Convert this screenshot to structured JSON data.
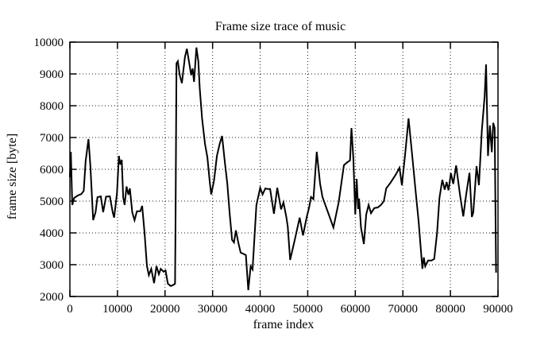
{
  "chart_data": {
    "type": "line",
    "title": "Frame size trace of music",
    "xlabel": "frame index",
    "ylabel": "frame size [byte]",
    "xlim": [
      0,
      90000
    ],
    "ylim": [
      2000,
      10000
    ],
    "x_ticks": [
      0,
      10000,
      20000,
      30000,
      40000,
      50000,
      60000,
      70000,
      80000,
      90000
    ],
    "y_ticks": [
      2000,
      3000,
      4000,
      5000,
      6000,
      7000,
      8000,
      9000,
      10000
    ],
    "grid": "dotted",
    "legend": "none",
    "line_color": "#000000",
    "background": "#ffffff",
    "series": [
      {
        "name": "frame size trace",
        "points": [
          [
            0,
            5750
          ],
          [
            200,
            6550
          ],
          [
            500,
            4880
          ],
          [
            900,
            5100
          ],
          [
            1700,
            5180
          ],
          [
            2400,
            5220
          ],
          [
            2900,
            5320
          ],
          [
            3300,
            6250
          ],
          [
            3900,
            6950
          ],
          [
            4300,
            6100
          ],
          [
            4900,
            4400
          ],
          [
            5400,
            4650
          ],
          [
            5800,
            5120
          ],
          [
            6500,
            5150
          ],
          [
            7000,
            4650
          ],
          [
            7600,
            5140
          ],
          [
            8400,
            5150
          ],
          [
            9000,
            4650
          ],
          [
            9300,
            4480
          ],
          [
            9900,
            5250
          ],
          [
            10300,
            6420
          ],
          [
            10600,
            6150
          ],
          [
            10900,
            6300
          ],
          [
            11200,
            5120
          ],
          [
            11500,
            4880
          ],
          [
            11900,
            5460
          ],
          [
            12300,
            5200
          ],
          [
            12600,
            5400
          ],
          [
            13100,
            4650
          ],
          [
            13600,
            4400
          ],
          [
            14100,
            4680
          ],
          [
            14800,
            4680
          ],
          [
            15200,
            4850
          ],
          [
            15700,
            4000
          ],
          [
            16200,
            2960
          ],
          [
            16600,
            2670
          ],
          [
            17100,
            2870
          ],
          [
            17700,
            2420
          ],
          [
            18200,
            2960
          ],
          [
            18700,
            2700
          ],
          [
            19100,
            2870
          ],
          [
            19700,
            2780
          ],
          [
            20100,
            2820
          ],
          [
            20600,
            2400
          ],
          [
            21200,
            2330
          ],
          [
            21700,
            2360
          ],
          [
            22100,
            2400
          ],
          [
            22200,
            4300
          ],
          [
            22400,
            9330
          ],
          [
            22700,
            9400
          ],
          [
            23100,
            8960
          ],
          [
            23550,
            8710
          ],
          [
            24200,
            9540
          ],
          [
            24600,
            9790
          ],
          [
            25050,
            9380
          ],
          [
            25500,
            8960
          ],
          [
            25800,
            9170
          ],
          [
            26100,
            8750
          ],
          [
            26600,
            9830
          ],
          [
            27000,
            9400
          ],
          [
            27300,
            8540
          ],
          [
            27800,
            7580
          ],
          [
            28400,
            6800
          ],
          [
            28900,
            6380
          ],
          [
            29400,
            5600
          ],
          [
            29700,
            5210
          ],
          [
            30300,
            5650
          ],
          [
            30900,
            6420
          ],
          [
            31500,
            6800
          ],
          [
            32000,
            7050
          ],
          [
            32600,
            6200
          ],
          [
            33100,
            5550
          ],
          [
            33600,
            4600
          ],
          [
            34100,
            3780
          ],
          [
            34500,
            3700
          ],
          [
            34900,
            4080
          ],
          [
            35400,
            3700
          ],
          [
            35900,
            3380
          ],
          [
            36500,
            3340
          ],
          [
            37000,
            3300
          ],
          [
            37500,
            2200
          ],
          [
            38000,
            2950
          ],
          [
            38400,
            2850
          ],
          [
            39200,
            4870
          ],
          [
            40000,
            5420
          ],
          [
            40500,
            5210
          ],
          [
            41100,
            5400
          ],
          [
            41600,
            5380
          ],
          [
            42100,
            5380
          ],
          [
            42900,
            4600
          ],
          [
            43600,
            5420
          ],
          [
            44400,
            4740
          ],
          [
            44900,
            4960
          ],
          [
            45500,
            4500
          ],
          [
            45800,
            4200
          ],
          [
            46300,
            3150
          ],
          [
            47300,
            3800
          ],
          [
            48300,
            4480
          ],
          [
            49000,
            3920
          ],
          [
            49800,
            4500
          ],
          [
            50300,
            4800
          ],
          [
            50700,
            5130
          ],
          [
            51200,
            5060
          ],
          [
            51900,
            6550
          ],
          [
            52600,
            5550
          ],
          [
            53100,
            5130
          ],
          [
            54300,
            4630
          ],
          [
            55400,
            4170
          ],
          [
            56500,
            4960
          ],
          [
            57600,
            6130
          ],
          [
            58300,
            6220
          ],
          [
            58900,
            6280
          ],
          [
            59200,
            7300
          ],
          [
            59600,
            6330
          ],
          [
            60000,
            4580
          ],
          [
            60300,
            5700
          ],
          [
            60600,
            4750
          ],
          [
            60800,
            5080
          ],
          [
            61200,
            4170
          ],
          [
            61800,
            3650
          ],
          [
            62300,
            4580
          ],
          [
            62800,
            4880
          ],
          [
            63300,
            4620
          ],
          [
            64000,
            4780
          ],
          [
            64700,
            4800
          ],
          [
            65400,
            4880
          ],
          [
            66000,
            5000
          ],
          [
            66500,
            5400
          ],
          [
            67400,
            5580
          ],
          [
            68500,
            5830
          ],
          [
            69300,
            6050
          ],
          [
            69800,
            5500
          ],
          [
            70500,
            6500
          ],
          [
            71200,
            7600
          ],
          [
            72000,
            6380
          ],
          [
            72800,
            5130
          ],
          [
            73300,
            4380
          ],
          [
            74100,
            2870
          ],
          [
            74400,
            3230
          ],
          [
            74700,
            2950
          ],
          [
            75300,
            3130
          ],
          [
            76000,
            3130
          ],
          [
            76600,
            3180
          ],
          [
            77200,
            4000
          ],
          [
            77700,
            5100
          ],
          [
            78300,
            5670
          ],
          [
            78800,
            5360
          ],
          [
            79200,
            5600
          ],
          [
            79600,
            5340
          ],
          [
            80100,
            5880
          ],
          [
            80600,
            5540
          ],
          [
            81200,
            6120
          ],
          [
            82000,
            5210
          ],
          [
            82700,
            4520
          ],
          [
            83300,
            5200
          ],
          [
            84000,
            5890
          ],
          [
            84500,
            4500
          ],
          [
            84800,
            4640
          ],
          [
            85500,
            6100
          ],
          [
            86000,
            5500
          ],
          [
            86600,
            7200
          ],
          [
            87200,
            8300
          ],
          [
            87500,
            9300
          ],
          [
            87900,
            6420
          ],
          [
            88300,
            7380
          ],
          [
            88700,
            6540
          ],
          [
            89000,
            7460
          ],
          [
            89300,
            7300
          ],
          [
            89600,
            2750
          ]
        ]
      }
    ]
  }
}
